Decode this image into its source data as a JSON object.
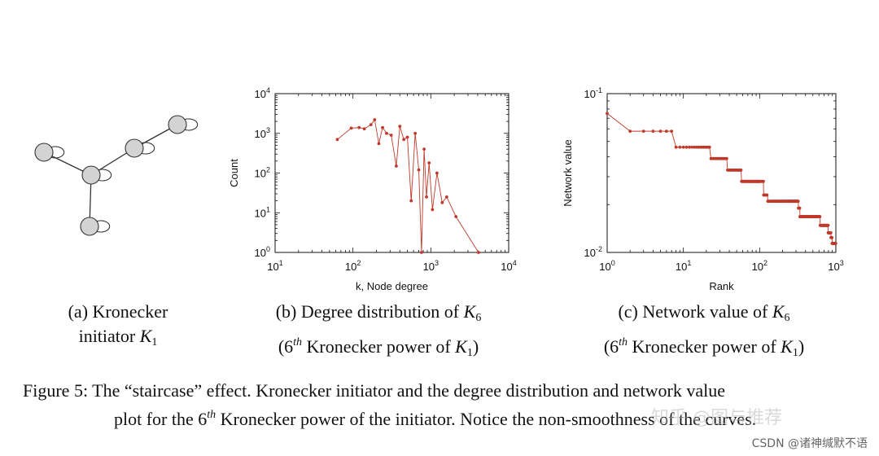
{
  "colors": {
    "series": "#c0392b",
    "node_fill": "#d3d3d3",
    "node_stroke": "#333333"
  },
  "panel_a": {
    "caption_line1": "(a) Kronecker",
    "caption_line2_prefix": "initiator ",
    "caption_symbol": "K",
    "caption_sub": "1"
  },
  "panel_b": {
    "caption_line1_prefix": "(b) Degree distribution of ",
    "caption_symbol": "K",
    "caption_sub": "6",
    "caption_line2_a": "(6",
    "caption_sup": "th",
    "caption_line2_b": " Kronecker power of ",
    "caption_symbol2": "K",
    "caption_sub2": "1",
    "caption_line2_c": ")"
  },
  "panel_c": {
    "caption_line1_prefix": "(c) Network value of ",
    "caption_symbol": "K",
    "caption_sub": "6",
    "caption_line2_a": "(6",
    "caption_sup": "th",
    "caption_line2_b": " Kronecker power of ",
    "caption_symbol2": "K",
    "caption_sub2": "1",
    "caption_line2_c": ")"
  },
  "figure_caption": {
    "line1": "Figure 5:  The “staircase” effect. Kronecker initiator and the degree distribution and network value",
    "line2_a": "plot for the 6",
    "line2_sup": "th",
    "line2_b": " Kronecker power of the initiator. Notice the non-smoothness of the curves."
  },
  "watermark": {
    "site": "知乎 @图与推荐",
    "footer": "CSDN @诸神缄默不语"
  },
  "chart_data": [
    {
      "type": "scatter",
      "title": "Degree distribution of K6",
      "xlabel": "k, Node degree",
      "ylabel": "Count",
      "xscale": "log",
      "yscale": "log",
      "xlim": [
        10,
        10000
      ],
      "ylim": [
        1,
        10000
      ],
      "x_ticks": [
        "10^1",
        "10^2",
        "10^3",
        "10^4"
      ],
      "y_ticks": [
        "10^0",
        "10^1",
        "10^2",
        "10^3",
        "10^4"
      ],
      "x": [
        63,
        95,
        120,
        140,
        170,
        190,
        215,
        240,
        270,
        310,
        360,
        400,
        450,
        500,
        560,
        630,
        700,
        760,
        820,
        880,
        950,
        1050,
        1200,
        1400,
        1600,
        2100,
        4100
      ],
      "y": [
        700,
        1350,
        1400,
        1300,
        1650,
        2200,
        550,
        1400,
        1000,
        900,
        150,
        1500,
        700,
        800,
        20,
        1000,
        120,
        1,
        400,
        25,
        180,
        12,
        100,
        18,
        25,
        8,
        1
      ]
    },
    {
      "type": "scatter",
      "title": "Network value of K6",
      "xlabel": "Rank",
      "ylabel": "Network value",
      "xscale": "log",
      "yscale": "log",
      "xlim": [
        1,
        1000
      ],
      "ylim": [
        0.01,
        0.1
      ],
      "x_ticks": [
        "10^0",
        "10^1",
        "10^2",
        "10^3"
      ],
      "y_ticks": [
        "10^-2",
        "10^-1"
      ],
      "steps": [
        {
          "from": 1,
          "to": 1,
          "value": 0.075
        },
        {
          "from": 2,
          "to": 7,
          "value": 0.058
        },
        {
          "from": 8,
          "to": 22,
          "value": 0.046
        },
        {
          "from": 23,
          "to": 37,
          "value": 0.039
        },
        {
          "from": 38,
          "to": 57,
          "value": 0.033
        },
        {
          "from": 58,
          "to": 112,
          "value": 0.028
        },
        {
          "from": 113,
          "to": 127,
          "value": 0.023
        },
        {
          "from": 128,
          "to": 322,
          "value": 0.021
        },
        {
          "from": 323,
          "to": 337,
          "value": 0.019
        },
        {
          "from": 338,
          "to": 622,
          "value": 0.0168
        },
        {
          "from": 623,
          "to": 792,
          "value": 0.0148
        },
        {
          "from": 793,
          "to": 862,
          "value": 0.0133
        },
        {
          "from": 863,
          "to": 892,
          "value": 0.0124
        },
        {
          "from": 893,
          "to": 1000,
          "value": 0.0114
        }
      ]
    }
  ]
}
